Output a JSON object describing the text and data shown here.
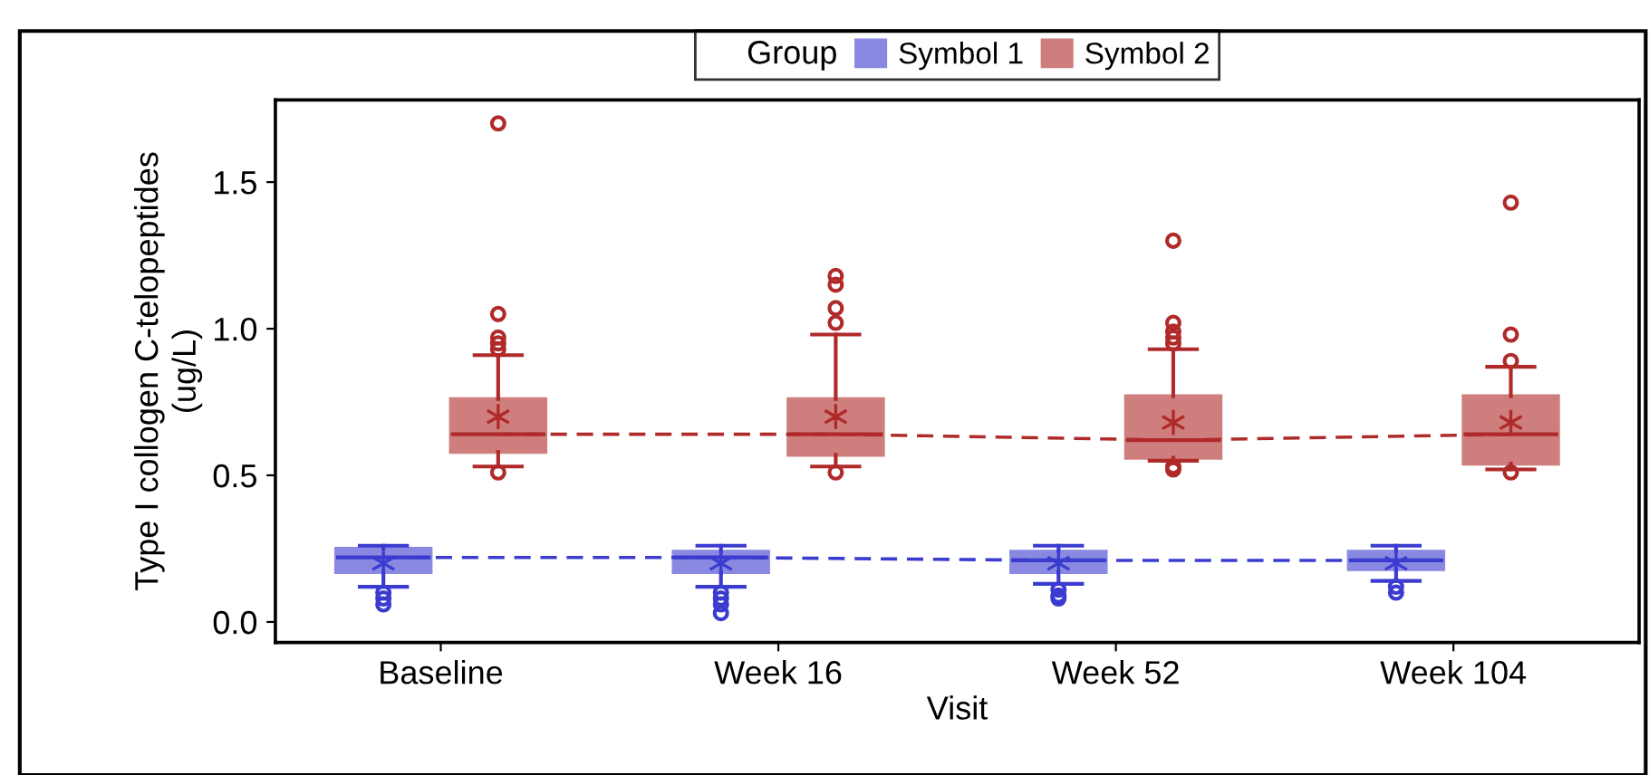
{
  "chart_data": {
    "type": "box",
    "xlabel": "Visit",
    "ylabel": "Type I collogen C-telopeptides\n(ug/L)",
    "legend_title": "Group",
    "legend": "top",
    "categories": [
      "Baseline",
      "Week 16",
      "Week 52",
      "Week 104"
    ],
    "ylim": [
      -0.07,
      1.78
    ],
    "yticks": [
      {
        "value": 0,
        "label": "0.0"
      },
      0.5,
      {
        "value": 1,
        "label": "1.0"
      },
      1.5
    ],
    "grid": false,
    "series": [
      {
        "name": "Symbol 1",
        "color": "#3b3bd0",
        "boxes": [
          {
            "low": 0.12,
            "q1": 0.17,
            "median": 0.22,
            "q3": 0.25,
            "high": 0.26,
            "mean": 0.2,
            "outliers": [
              0.1,
              0.08,
              0.06
            ]
          },
          {
            "low": 0.12,
            "q1": 0.17,
            "median": 0.22,
            "q3": 0.24,
            "high": 0.26,
            "mean": 0.2,
            "outliers": [
              0.1,
              0.08,
              0.06,
              0.03
            ]
          },
          {
            "low": 0.13,
            "q1": 0.17,
            "median": 0.21,
            "q3": 0.24,
            "high": 0.26,
            "mean": 0.2,
            "outliers": [
              0.11,
              0.09,
              0.08
            ]
          },
          {
            "low": 0.14,
            "q1": 0.18,
            "median": 0.21,
            "q3": 0.24,
            "high": 0.26,
            "mean": 0.2,
            "outliers": [
              0.12,
              0.1
            ]
          }
        ]
      },
      {
        "name": "Symbol 2",
        "color": "#b02a2a",
        "boxes": [
          {
            "low": 0.53,
            "q1": 0.58,
            "median": 0.64,
            "q3": 0.76,
            "high": 0.91,
            "mean": 0.7,
            "outliers": [
              1.7,
              1.05,
              0.97,
              0.95,
              0.93,
              0.51
            ]
          },
          {
            "low": 0.53,
            "q1": 0.57,
            "median": 0.64,
            "q3": 0.76,
            "high": 0.98,
            "mean": 0.7,
            "outliers": [
              1.18,
              1.15,
              1.07,
              1.02,
              0.51
            ]
          },
          {
            "low": 0.55,
            "q1": 0.56,
            "median": 0.62,
            "q3": 0.77,
            "high": 0.93,
            "mean": 0.68,
            "outliers": [
              1.3,
              1.02,
              0.99,
              0.97,
              0.95,
              0.53,
              0.52
            ]
          },
          {
            "low": 0.52,
            "q1": 0.54,
            "median": 0.64,
            "q3": 0.77,
            "high": 0.87,
            "mean": 0.68,
            "outliers": [
              1.43,
              0.98,
              0.89,
              0.51
            ]
          }
        ]
      },
      {
        "type": "line",
        "color": "#3b3bd0",
        "line_style": "dashed",
        "values": [
          0.22,
          0.22,
          0.21,
          0.21
        ]
      },
      {
        "type": "line",
        "color": "#b02a2a",
        "line_style": "dashed",
        "values": [
          0.64,
          0.64,
          0.62,
          0.64
        ]
      }
    ]
  }
}
